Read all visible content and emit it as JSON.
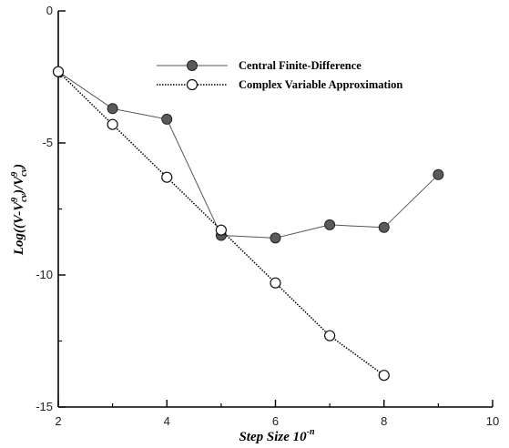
{
  "chart_data": {
    "type": "line",
    "title": "",
    "xlabel": "Step Size 10",
    "xlabel_superscript": "-n",
    "ylabel_parts": [
      "Log((V-V",
      "9",
      "cv",
      ")/V",
      "9",
      "cv",
      ")"
    ],
    "xlim": [
      2,
      10
    ],
    "ylim": [
      -15,
      0
    ],
    "x_ticks": [
      2,
      4,
      6,
      8,
      10
    ],
    "y_ticks": [
      0,
      -5,
      -10,
      -15
    ],
    "x_tick_labels": [
      "2",
      "4",
      "6",
      "8",
      "10"
    ],
    "y_tick_labels": [
      "0",
      "-5",
      "-10",
      "-15"
    ],
    "grid": false,
    "legend_position": "top-right",
    "series": [
      {
        "name": "Central Finite-Difference",
        "marker": "filled-circle",
        "line_style": "solid",
        "color": "#555555",
        "x": [
          2,
          3,
          4,
          5,
          6,
          7,
          8,
          9
        ],
        "y": [
          -2.3,
          -3.7,
          -4.1,
          -8.5,
          -8.6,
          -8.1,
          -8.2,
          -6.2
        ]
      },
      {
        "name": "Complex Variable Approximation",
        "marker": "open-circle",
        "line_style": "dotted",
        "color": "#000000",
        "x": [
          2,
          3,
          4,
          5,
          6,
          7,
          8
        ],
        "y": [
          -2.3,
          -4.3,
          -6.3,
          -8.3,
          -10.3,
          -12.3,
          -13.8
        ]
      }
    ]
  }
}
